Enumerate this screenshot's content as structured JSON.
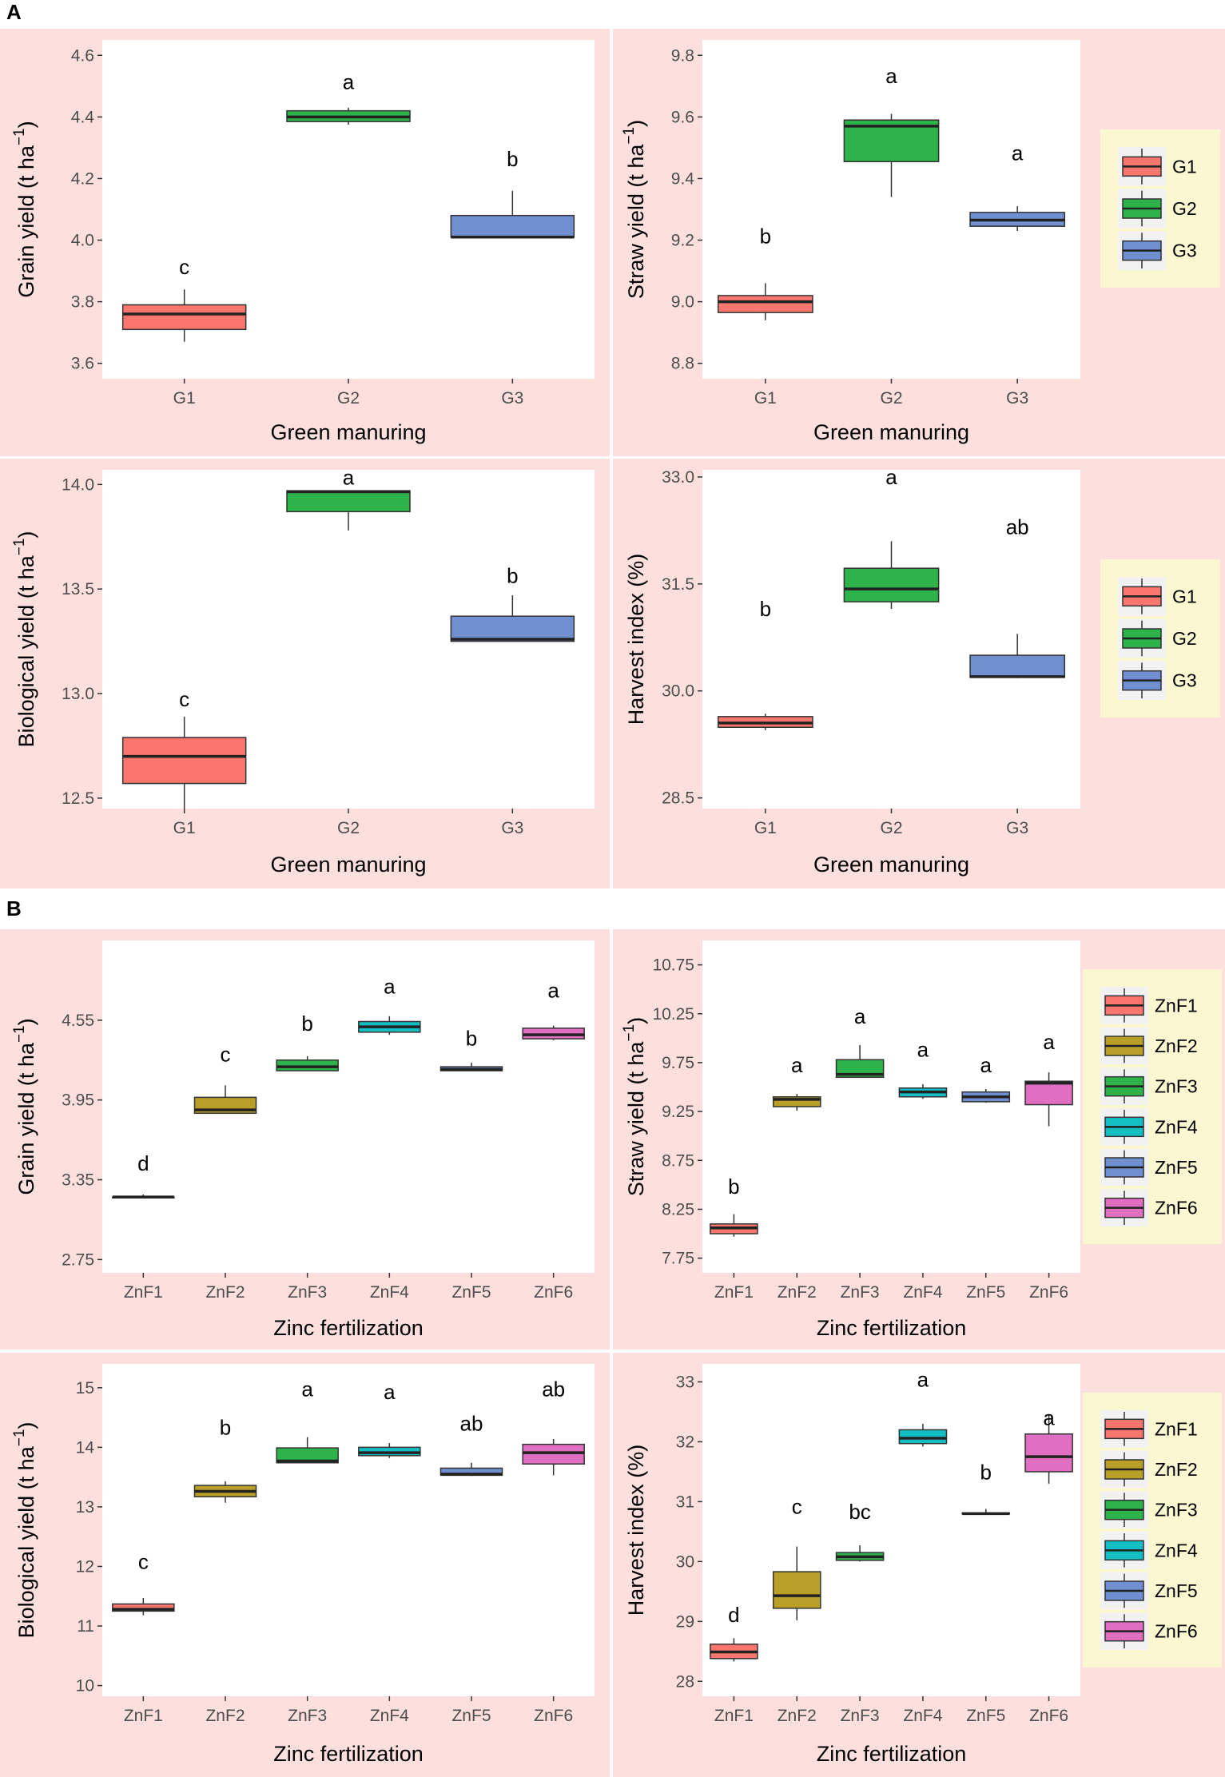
{
  "sections": [
    {
      "label": "A"
    },
    {
      "label": "B"
    }
  ],
  "chart_data": [
    {
      "id": "A-grain",
      "type": "boxplot",
      "xlabel": "Green manuring",
      "ylabel": "Grain yield (t ha",
      "ylabel_sup": "−1",
      "ylim": [
        3.55,
        4.65
      ],
      "yticks": [
        "3.6",
        "3.8",
        "4.0",
        "4.2",
        "4.4",
        "4.6"
      ],
      "categories": [
        "G1",
        "G2",
        "G3"
      ],
      "colors": [
        "#f8766d",
        "#2db34a",
        "#6f8fd0"
      ],
      "boxes": [
        {
          "min": 3.67,
          "q1": 3.71,
          "median": 3.76,
          "q3": 3.79,
          "max": 3.84,
          "letter": "c",
          "letter_y": 3.89
        },
        {
          "min": 4.375,
          "q1": 4.385,
          "median": 4.4,
          "q3": 4.42,
          "max": 4.43,
          "letter": "a",
          "letter_y": 4.49
        },
        {
          "min": 4.01,
          "q1": 4.01,
          "median": 4.01,
          "q3": 4.08,
          "max": 4.16,
          "letter": "b",
          "letter_y": 4.24
        }
      ]
    },
    {
      "id": "A-straw",
      "type": "boxplot",
      "xlabel": "Green manuring",
      "ylabel": "Straw yield (t ha",
      "ylabel_sup": "−1",
      "ylim": [
        8.75,
        9.85
      ],
      "yticks": [
        "8.8",
        "9.0",
        "9.2",
        "9.4",
        "9.6",
        "9.8"
      ],
      "categories": [
        "G1",
        "G2",
        "G3"
      ],
      "colors": [
        "#f8766d",
        "#2db34a",
        "#6f8fd0"
      ],
      "boxes": [
        {
          "min": 8.94,
          "q1": 8.965,
          "median": 9.0,
          "q3": 9.02,
          "max": 9.06,
          "letter": "b",
          "letter_y": 9.19
        },
        {
          "min": 9.34,
          "q1": 9.455,
          "median": 9.57,
          "q3": 9.59,
          "max": 9.61,
          "letter": "a",
          "letter_y": 9.71
        },
        {
          "min": 9.23,
          "q1": 9.245,
          "median": 9.265,
          "q3": 9.29,
          "max": 9.31,
          "letter": "a",
          "letter_y": 9.46
        }
      ],
      "legend": [
        "G1",
        "G2",
        "G3"
      ]
    },
    {
      "id": "A-bio",
      "type": "boxplot",
      "xlabel": "Green manuring",
      "ylabel": "Biological yield (t ha",
      "ylabel_sup": "−1",
      "ylim": [
        12.45,
        14.07
      ],
      "yticks": [
        "12.5",
        "13.0",
        "13.5",
        "14.0"
      ],
      "categories": [
        "G1",
        "G2",
        "G3"
      ],
      "colors": [
        "#f8766d",
        "#2db34a",
        "#6f8fd0"
      ],
      "boxes": [
        {
          "min": 12.45,
          "q1": 12.57,
          "median": 12.7,
          "q3": 12.79,
          "max": 12.89,
          "letter": "c",
          "letter_y": 12.94
        },
        {
          "min": 13.78,
          "q1": 13.87,
          "median": 13.965,
          "q3": 13.97,
          "max": 13.97,
          "letter": "a",
          "letter_y": 14.0
        },
        {
          "min": 13.25,
          "q1": 13.25,
          "median": 13.26,
          "q3": 13.37,
          "max": 13.47,
          "letter": "b",
          "letter_y": 13.53
        }
      ]
    },
    {
      "id": "A-hi",
      "type": "boxplot",
      "xlabel": "Green manuring",
      "ylabel": "Harvest index (%)",
      "ylabel_sup": "",
      "ylim": [
        28.35,
        33.1
      ],
      "yticks": [
        "28.5",
        "30.0",
        "31.5",
        "33.0"
      ],
      "ytick_values": [
        28.5,
        30.0,
        31.5,
        33.0
      ],
      "categories": [
        "G1",
        "G2",
        "G3"
      ],
      "colors": [
        "#f8766d",
        "#2db34a",
        "#6f8fd0"
      ],
      "boxes": [
        {
          "min": 29.45,
          "q1": 29.49,
          "median": 29.55,
          "q3": 29.64,
          "max": 29.68,
          "letter": "b",
          "letter_y": 31.05
        },
        {
          "min": 31.15,
          "q1": 31.25,
          "median": 31.43,
          "q3": 31.72,
          "max": 32.1,
          "letter": "a",
          "letter_y": 32.9
        },
        {
          "min": 30.18,
          "q1": 30.19,
          "median": 30.2,
          "q3": 30.5,
          "max": 30.8,
          "letter": "ab",
          "letter_y": 32.2
        }
      ],
      "legend": [
        "G1",
        "G2",
        "G3"
      ]
    },
    {
      "id": "B-grain",
      "type": "boxplot",
      "xlabel": "Zinc fertilization",
      "ylabel": "Grain yield (t ha",
      "ylabel_sup": "−1",
      "ylim": [
        2.65,
        5.15
      ],
      "yticks": [
        "2.75",
        "3.35",
        "3.95",
        "4.55"
      ],
      "ytick_values": [
        2.75,
        3.35,
        3.95,
        4.55
      ],
      "categories": [
        "ZnF1",
        "ZnF2",
        "ZnF3",
        "ZnF4",
        "ZnF5",
        "ZnF6"
      ],
      "colors": [
        "#f8766d",
        "#b79f28",
        "#2db34a",
        "#14bfc4",
        "#6f8fd0",
        "#e16fc1"
      ],
      "boxes": [
        {
          "min": 3.22,
          "q1": 3.22,
          "median": 3.22,
          "q3": 3.22,
          "max": 3.24,
          "letter": "d",
          "letter_y": 3.42
        },
        {
          "min": 3.85,
          "q1": 3.85,
          "median": 3.875,
          "q3": 3.97,
          "max": 4.06,
          "letter": "c",
          "letter_y": 4.24
        },
        {
          "min": 4.17,
          "q1": 4.17,
          "median": 4.2,
          "q3": 4.25,
          "max": 4.28,
          "letter": "b",
          "letter_y": 4.47
        },
        {
          "min": 4.44,
          "q1": 4.46,
          "median": 4.5,
          "q3": 4.54,
          "max": 4.58,
          "letter": "a",
          "letter_y": 4.75
        },
        {
          "min": 4.17,
          "q1": 4.17,
          "median": 4.18,
          "q3": 4.2,
          "max": 4.23,
          "letter": "b",
          "letter_y": 4.36
        },
        {
          "min": 4.4,
          "q1": 4.41,
          "median": 4.44,
          "q3": 4.49,
          "max": 4.51,
          "letter": "a",
          "letter_y": 4.72
        }
      ]
    },
    {
      "id": "B-straw",
      "type": "boxplot",
      "xlabel": "Zinc fertilization",
      "ylabel": "Straw yield (t ha",
      "ylabel_sup": "−1",
      "ylim": [
        7.6,
        11.0
      ],
      "yticks": [
        "7.75",
        "8.25",
        "8.75",
        "9.25",
        "9.75",
        "10.25",
        "10.75"
      ],
      "ytick_values": [
        7.75,
        8.25,
        8.75,
        9.25,
        9.75,
        10.25,
        10.75
      ],
      "categories": [
        "ZnF1",
        "ZnF2",
        "ZnF3",
        "ZnF4",
        "ZnF5",
        "ZnF6"
      ],
      "colors": [
        "#f8766d",
        "#b79f28",
        "#2db34a",
        "#14bfc4",
        "#6f8fd0",
        "#e16fc1"
      ],
      "boxes": [
        {
          "min": 7.97,
          "q1": 8.0,
          "median": 8.06,
          "q3": 8.1,
          "max": 8.2,
          "letter": "b",
          "letter_y": 8.41
        },
        {
          "min": 9.26,
          "q1": 9.3,
          "median": 9.375,
          "q3": 9.4,
          "max": 9.43,
          "letter": "a",
          "letter_y": 9.65
        },
        {
          "min": 9.6,
          "q1": 9.6,
          "median": 9.63,
          "q3": 9.78,
          "max": 9.93,
          "letter": "a",
          "letter_y": 10.15
        },
        {
          "min": 9.38,
          "q1": 9.4,
          "median": 9.45,
          "q3": 9.49,
          "max": 9.53,
          "letter": "a",
          "letter_y": 9.81
        },
        {
          "min": 9.34,
          "q1": 9.35,
          "median": 9.4,
          "q3": 9.45,
          "max": 9.48,
          "letter": "a",
          "letter_y": 9.65
        },
        {
          "min": 9.1,
          "q1": 9.32,
          "median": 9.54,
          "q3": 9.56,
          "max": 9.65,
          "letter": "a",
          "letter_y": 9.89
        }
      ],
      "legend": [
        "ZnF1",
        "ZnF2",
        "ZnF3",
        "ZnF4",
        "ZnF5",
        "ZnF6"
      ]
    },
    {
      "id": "B-bio",
      "type": "boxplot",
      "xlabel": "Zinc fertilization",
      "ylabel": "Biological yield (t ha",
      "ylabel_sup": "−1",
      "ylim": [
        9.82,
        15.4
      ],
      "yticks": [
        "10",
        "11",
        "12",
        "13",
        "14",
        "15"
      ],
      "ytick_values": [
        10,
        11,
        12,
        13,
        14,
        15
      ],
      "categories": [
        "ZnF1",
        "ZnF2",
        "ZnF3",
        "ZnF4",
        "ZnF5",
        "ZnF6"
      ],
      "colors": [
        "#f8766d",
        "#b79f28",
        "#2db34a",
        "#14bfc4",
        "#6f8fd0",
        "#e16fc1"
      ],
      "boxes": [
        {
          "min": 11.18,
          "q1": 11.25,
          "median": 11.28,
          "q3": 11.37,
          "max": 11.47,
          "letter": "c",
          "letter_y": 11.96
        },
        {
          "min": 13.07,
          "q1": 13.17,
          "median": 13.26,
          "q3": 13.36,
          "max": 13.43,
          "letter": "b",
          "letter_y": 14.21
        },
        {
          "min": 13.74,
          "q1": 13.74,
          "median": 13.77,
          "q3": 13.99,
          "max": 14.17,
          "letter": "a",
          "letter_y": 14.86
        },
        {
          "min": 13.82,
          "q1": 13.86,
          "median": 13.91,
          "q3": 14.0,
          "max": 14.07,
          "letter": "a",
          "letter_y": 14.81
        },
        {
          "min": 13.52,
          "q1": 13.53,
          "median": 13.55,
          "q3": 13.65,
          "max": 13.74,
          "letter": "ab",
          "letter_y": 14.28
        },
        {
          "min": 13.53,
          "q1": 13.72,
          "median": 13.91,
          "q3": 14.05,
          "max": 14.14,
          "letter": "ab",
          "letter_y": 14.86
        }
      ]
    },
    {
      "id": "B-hi",
      "type": "boxplot",
      "xlabel": "Zinc fertilization",
      "ylabel": "Harvest index (%)",
      "ylabel_sup": "",
      "ylim": [
        27.75,
        33.3
      ],
      "yticks": [
        "28",
        "29",
        "30",
        "31",
        "32",
        "33"
      ],
      "ytick_values": [
        28,
        29,
        30,
        31,
        32,
        33
      ],
      "categories": [
        "ZnF1",
        "ZnF2",
        "ZnF3",
        "ZnF4",
        "ZnF5",
        "ZnF6"
      ],
      "colors": [
        "#f8766d",
        "#b79f28",
        "#2db34a",
        "#14bfc4",
        "#6f8fd0",
        "#e16fc1"
      ],
      "boxes": [
        {
          "min": 28.33,
          "q1": 28.38,
          "median": 28.49,
          "q3": 28.62,
          "max": 28.72,
          "letter": "d",
          "letter_y": 28.99
        },
        {
          "min": 29.02,
          "q1": 29.22,
          "median": 29.43,
          "q3": 29.83,
          "max": 30.25,
          "letter": "c",
          "letter_y": 30.8
        },
        {
          "min": 30.0,
          "q1": 30.02,
          "median": 30.08,
          "q3": 30.15,
          "max": 30.27,
          "letter": "bc",
          "letter_y": 30.71
        },
        {
          "min": 31.92,
          "q1": 31.97,
          "median": 32.06,
          "q3": 32.2,
          "max": 32.3,
          "letter": "a",
          "letter_y": 32.92
        },
        {
          "min": 30.8,
          "q1": 30.8,
          "median": 30.8,
          "q3": 30.81,
          "max": 30.88,
          "letter": "b",
          "letter_y": 31.37
        },
        {
          "min": 31.3,
          "q1": 31.5,
          "median": 31.75,
          "q3": 32.13,
          "max": 32.45,
          "letter": "a",
          "letter_y": 32.28
        }
      ],
      "legend": [
        "ZnF1",
        "ZnF2",
        "ZnF3",
        "ZnF4",
        "ZnF5",
        "ZnF6"
      ]
    }
  ]
}
